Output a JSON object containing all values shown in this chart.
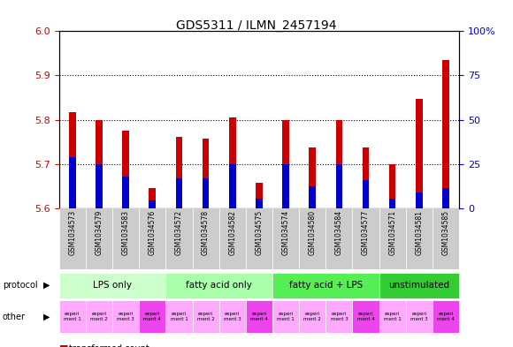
{
  "title": "GDS5311 / ILMN_2457194",
  "samples": [
    "GSM1034573",
    "GSM1034579",
    "GSM1034583",
    "GSM1034576",
    "GSM1034572",
    "GSM1034578",
    "GSM1034582",
    "GSM1034575",
    "GSM1034574",
    "GSM1034580",
    "GSM1034584",
    "GSM1034577",
    "GSM1034571",
    "GSM1034581",
    "GSM1034585"
  ],
  "red_values": [
    5.818,
    5.8,
    5.775,
    5.645,
    5.762,
    5.757,
    5.805,
    5.658,
    5.8,
    5.738,
    5.8,
    5.738,
    5.7,
    5.847,
    5.935
  ],
  "blue_values": [
    5.715,
    5.7,
    5.672,
    5.618,
    5.668,
    5.668,
    5.7,
    5.622,
    5.7,
    5.65,
    5.7,
    5.663,
    5.622,
    5.636,
    5.645
  ],
  "ylim_left": [
    5.6,
    6.0
  ],
  "ylim_right": [
    0,
    100
  ],
  "yticks_left": [
    5.6,
    5.7,
    5.8,
    5.9,
    6.0
  ],
  "yticks_right": [
    0,
    25,
    50,
    75,
    100
  ],
  "bar_bottom": 5.6,
  "bar_width": 0.25,
  "bar_color_red": "#cc0000",
  "bar_color_blue": "#0000cc",
  "protocol_groups": [
    {
      "label": "LPS only",
      "start": 0,
      "end": 4,
      "color": "#ccffcc"
    },
    {
      "label": "fatty acid only",
      "start": 4,
      "end": 8,
      "color": "#aaffaa"
    },
    {
      "label": "fatty acid + LPS",
      "start": 8,
      "end": 12,
      "color": "#55ee55"
    },
    {
      "label": "unstimulated",
      "start": 12,
      "end": 15,
      "color": "#33cc33"
    }
  ],
  "other_labels": [
    "experi\nment 1",
    "experi\nment 2",
    "experi\nment 3",
    "experi\nment 4",
    "experi\nment 1",
    "experi\nment 2",
    "experi\nment 3",
    "experi\nment 4",
    "experi\nment 1",
    "experi\nment 2",
    "experi\nment 3",
    "experi\nment 4",
    "experi\nment 1",
    "experi\nment 3",
    "experi\nment 4"
  ],
  "other_colors": [
    "#ffaaff",
    "#ffaaff",
    "#ffaaff",
    "#ee44ee",
    "#ffaaff",
    "#ffaaff",
    "#ffaaff",
    "#ee44ee",
    "#ffaaff",
    "#ffaaff",
    "#ffaaff",
    "#ee44ee",
    "#ffaaff",
    "#ffaaff",
    "#ee44ee"
  ],
  "bg_color": "#ffffff",
  "chart_bg": "#ffffff",
  "xticklabel_bg": "#cccccc",
  "grid_color": "#000000",
  "tick_label_color_left": "#cc0000",
  "tick_label_color_right": "#0000cc"
}
